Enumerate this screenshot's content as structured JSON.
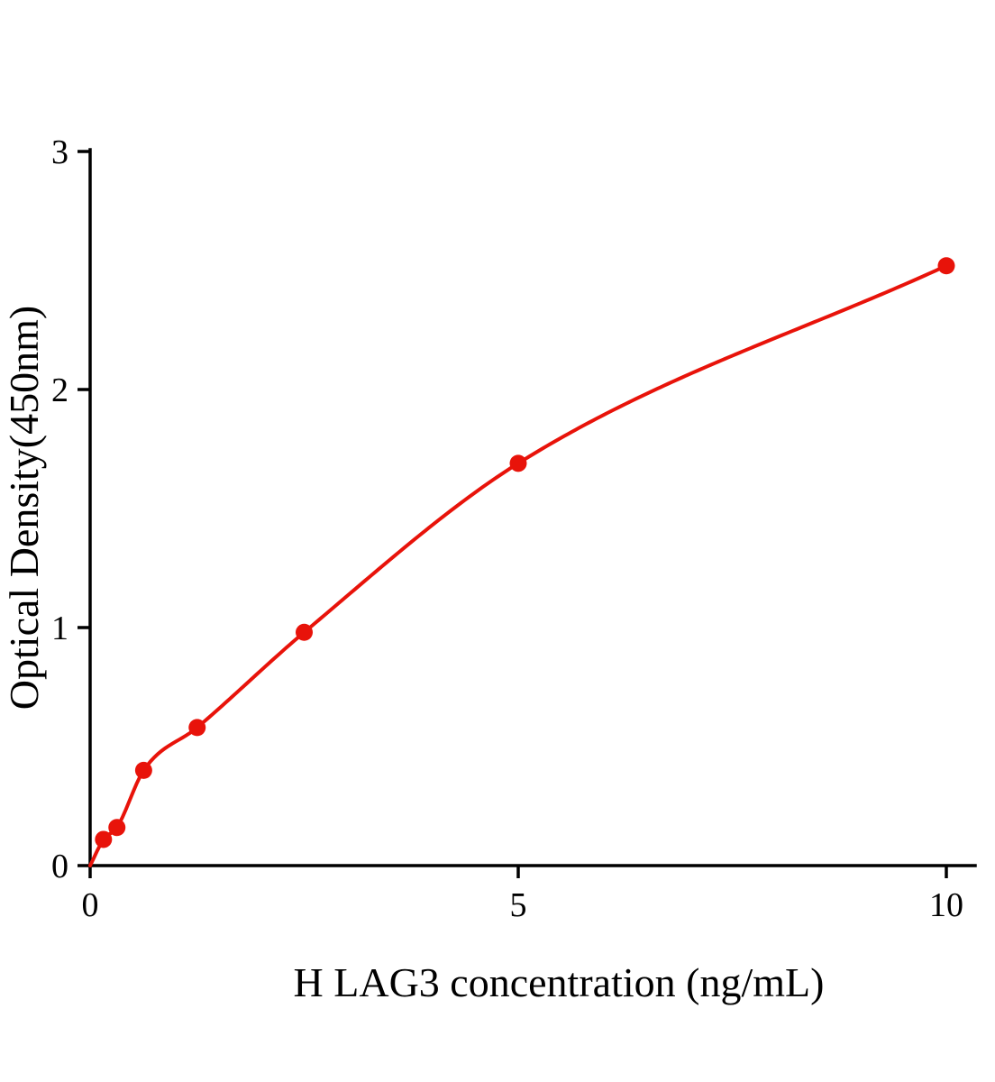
{
  "chart_data": {
    "type": "scatter",
    "title": "",
    "xlabel": "H LAG3 concentration (ng/mL)",
    "ylabel": "Optical Density(450nm)",
    "x": [
      0.156,
      0.313,
      0.625,
      1.25,
      2.5,
      5,
      10
    ],
    "y": [
      0.11,
      0.16,
      0.4,
      0.58,
      0.98,
      1.69,
      2.52
    ],
    "curve_through_origin": true,
    "xlim": [
      0,
      10
    ],
    "ylim": [
      0,
      3
    ],
    "x_ticks": [
      0,
      5,
      10
    ],
    "y_ticks": [
      0,
      1,
      2,
      3
    ],
    "grid": false,
    "legend": false,
    "marker_size": 9.5,
    "colors": {
      "curve": "#e8130a",
      "points": "#e8130a",
      "axis": "#000000",
      "text": "#000000"
    }
  }
}
